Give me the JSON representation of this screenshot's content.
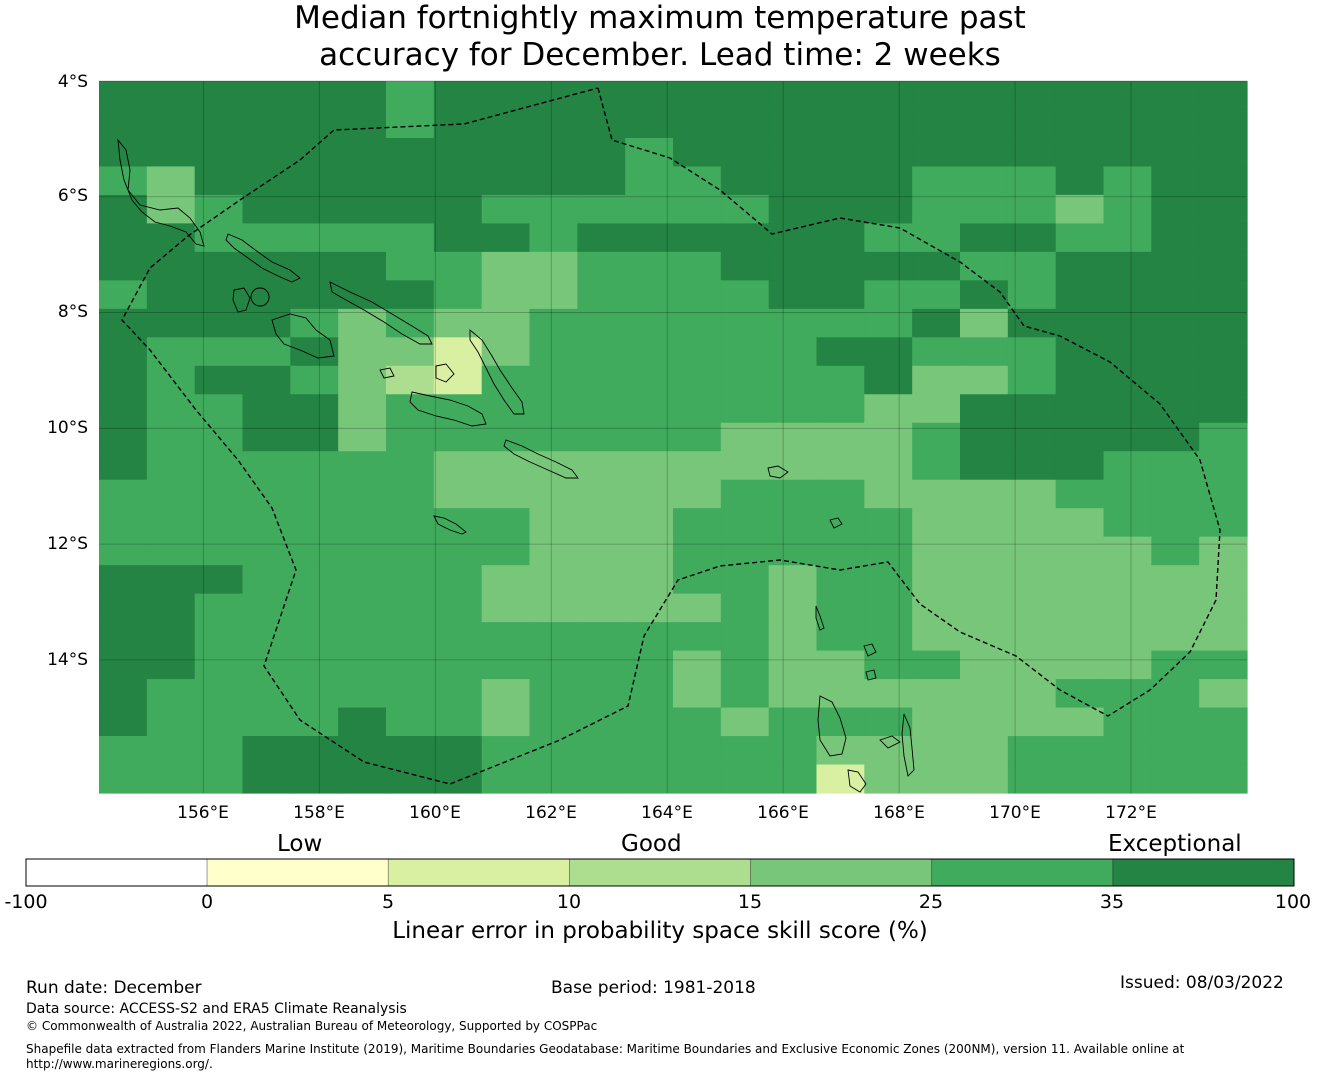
{
  "title": {
    "line1": "Median fortnightly maximum temperature past",
    "line2": "accuracy for December. Lead time: 2 weeks"
  },
  "map": {
    "lat_labels": [
      "4°S",
      "6°S",
      "8°S",
      "10°S",
      "12°S",
      "14°S"
    ],
    "lon_labels": [
      "156°E",
      "158°E",
      "160°E",
      "162°E",
      "164°E",
      "166°E",
      "168°E",
      "170°E",
      "172°E"
    ],
    "lon_range": [
      154.2,
      174.0
    ],
    "lat_range": [
      -16.3,
      -4.0
    ],
    "grid_lons": [
      156,
      158,
      160,
      162,
      164,
      166,
      168,
      170,
      172
    ],
    "grid_lats": [
      -4,
      -6,
      -8,
      -10,
      -12,
      -14
    ],
    "cell_size_deg": 0.825,
    "colors": {
      "c1": "#ffffcc",
      "c2": "#d9f0a3",
      "c3": "#addd8e",
      "c4": "#78c679",
      "c5": "#41ab5d",
      "c6": "#238443",
      "boundary": "#000000",
      "land": "#000000"
    },
    "skill_grid_note": "rows north to south, columns west to east; values are skill category index 1-6",
    "skill_grid": [
      "666666566666666666666666",
      "666666566666666666666666",
      "666666666665666666666666",
      "546666666665566665556566",
      "645666665555556665554566",
      "665555566566666655665566",
      "666666554455566666556666",
      "566666654455556655656666",
      "666654544555555556466666",
      "655564424555555665556666",
      "656654325555555564456666",
      "655664555555555544666666",
      "655664555555544445666665",
      "655555544444444445666555",
      "555555544444455544445555",
      "555555555444555554444555",
      "555555555444555554444454",
      "666555554444554554444444",
      "665555554444454554444444",
      "665555555555554554444444",
      "665555555555454455444455",
      "655555554555454444445554",
      "655556554555545554444555",
      "555666665555555444455555",
      "555666665555555244455555"
    ]
  },
  "colorbar": {
    "categories": [
      "Low",
      "Good",
      "Exceptional"
    ],
    "ticks": [
      "-100",
      "0",
      "5",
      "10",
      "15",
      "25",
      "35",
      "100"
    ],
    "colors": [
      "#ffffff",
      "#ffffcc",
      "#d9f0a3",
      "#addd8e",
      "#78c679",
      "#41ab5d",
      "#238443"
    ],
    "label": "Linear error in probability space skill score (%)"
  },
  "footer": {
    "run_date": "Run date: December",
    "base_period": "Base period: 1981-2018",
    "issued": "Issued: 08/03/2022",
    "data_source": "Data source: ACCESS-S2 and ERA5 Climate Reanalysis",
    "copyright": "© Commonwealth of Australia 2022, Australian Bureau of Meteorology, Supported by COSPPac",
    "shapefile_line1": "Shapefile data extracted from Flanders Marine Institute (2019), Maritime Boundaries Geodatabase: Maritime Boundaries and Exclusive Economic Zones (200NM), version 11. Available online at",
    "shapefile_line2": "http://www.marineregions.org/."
  }
}
